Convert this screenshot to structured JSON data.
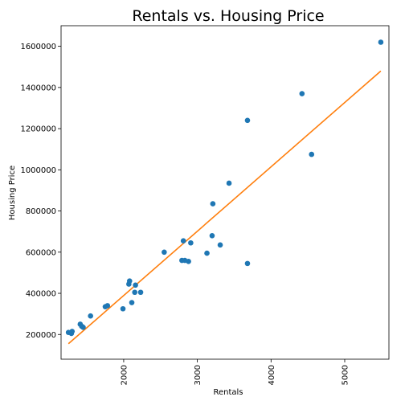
{
  "chart_data": {
    "type": "scatter",
    "title": "Rentals vs. Housing Price",
    "xlabel": "Rentals",
    "ylabel": "Housing Price",
    "xlim": [
      1150,
      5600
    ],
    "ylim": [
      80000,
      1700000
    ],
    "x_ticks": [
      2000,
      3000,
      4000,
      5000
    ],
    "y_ticks": [
      200000,
      400000,
      600000,
      800000,
      1000000,
      1200000,
      1400000,
      1600000
    ],
    "grid": false,
    "legend": "none",
    "colors": {
      "points": "#1f77b4",
      "fit_line": "#ff7f0e"
    },
    "series": [
      {
        "values": [
          {
            "x": 1250,
            "y": 210000
          },
          {
            "x": 1290,
            "y": 205000
          },
          {
            "x": 1300,
            "y": 215000
          },
          {
            "x": 1410,
            "y": 250000
          },
          {
            "x": 1430,
            "y": 240000
          },
          {
            "x": 1450,
            "y": 235000
          },
          {
            "x": 1550,
            "y": 290000
          },
          {
            "x": 1750,
            "y": 335000
          },
          {
            "x": 1780,
            "y": 340000
          },
          {
            "x": 1990,
            "y": 325000
          },
          {
            "x": 2070,
            "y": 445000
          },
          {
            "x": 2080,
            "y": 460000
          },
          {
            "x": 2110,
            "y": 355000
          },
          {
            "x": 2150,
            "y": 405000
          },
          {
            "x": 2160,
            "y": 440000
          },
          {
            "x": 2230,
            "y": 405000
          },
          {
            "x": 2550,
            "y": 600000
          },
          {
            "x": 2790,
            "y": 560000
          },
          {
            "x": 2810,
            "y": 655000
          },
          {
            "x": 2830,
            "y": 560000
          },
          {
            "x": 2880,
            "y": 555000
          },
          {
            "x": 2910,
            "y": 645000
          },
          {
            "x": 3130,
            "y": 595000
          },
          {
            "x": 3200,
            "y": 680000
          },
          {
            "x": 3210,
            "y": 835000
          },
          {
            "x": 3310,
            "y": 635000
          },
          {
            "x": 3430,
            "y": 935000
          },
          {
            "x": 3680,
            "y": 1240000
          },
          {
            "x": 3680,
            "y": 545000
          },
          {
            "x": 4420,
            "y": 1370000
          },
          {
            "x": 4550,
            "y": 1075000
          },
          {
            "x": 5490,
            "y": 1620000
          }
        ]
      }
    ],
    "fit_line": [
      {
        "x": 1250,
        "y": 155000
      },
      {
        "x": 5490,
        "y": 1480000
      }
    ]
  }
}
